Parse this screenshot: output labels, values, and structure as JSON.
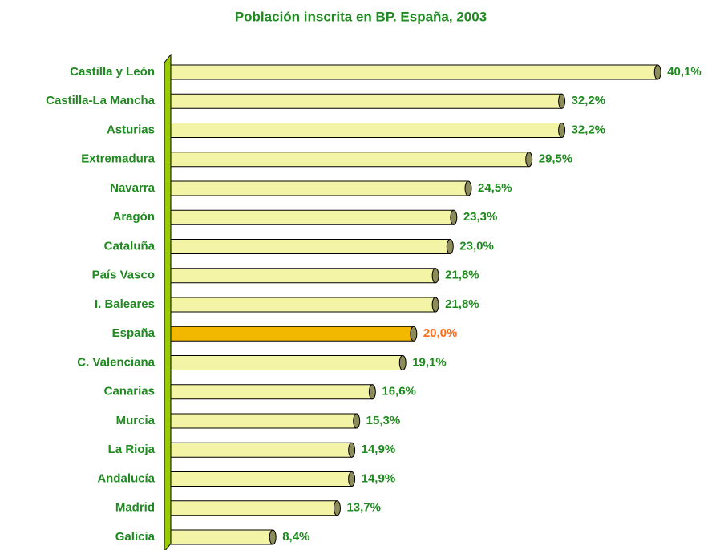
{
  "chart_data": {
    "type": "bar",
    "orientation": "horizontal",
    "title": "Población inscrita en BP. España, 2003",
    "categories": [
      "Castilla y León",
      "Castilla-La Mancha",
      "Asturias",
      "Extremadura",
      "Navarra",
      "Aragón",
      "Cataluña",
      "País Vasco",
      "I. Baleares",
      "España",
      "C. Valenciana",
      "Canarias",
      "Murcia",
      "La Rioja",
      "Andalucía",
      "Madrid",
      "Galicia"
    ],
    "values": [
      40.1,
      32.2,
      32.2,
      29.5,
      24.5,
      23.3,
      23.0,
      21.8,
      21.8,
      20.0,
      19.1,
      16.6,
      15.3,
      14.9,
      14.9,
      13.7,
      8.4
    ],
    "value_labels": [
      "40,1%",
      "32,2%",
      "32,2%",
      "29,5%",
      "24,5%",
      "23,3%",
      "23,0%",
      "21,8%",
      "21,8%",
      "20,0%",
      "19,1%",
      "16,6%",
      "15,3%",
      "14,9%",
      "14,9%",
      "13,7%",
      "8,4%"
    ],
    "colors": [
      "#f4f4a6",
      "#f4f4a6",
      "#f4f4a6",
      "#f4f4a6",
      "#f4f4a6",
      "#f4f4a6",
      "#f4f4a6",
      "#f4f4a6",
      "#f4f4a6",
      "#f2b800",
      "#f4f4a6",
      "#f4f4a6",
      "#f4f4a6",
      "#f4f4a6",
      "#f4f4a6",
      "#f4f4a6",
      "#f4f4a6"
    ],
    "label_colors": [
      "#1f8a1f",
      "#1f8a1f",
      "#1f8a1f",
      "#1f8a1f",
      "#1f8a1f",
      "#1f8a1f",
      "#1f8a1f",
      "#1f8a1f",
      "#1f8a1f",
      "#ff6a13",
      "#1f8a1f",
      "#1f8a1f",
      "#1f8a1f",
      "#1f8a1f",
      "#1f8a1f",
      "#1f8a1f",
      "#1f8a1f"
    ],
    "xlim": [
      0,
      42
    ]
  }
}
